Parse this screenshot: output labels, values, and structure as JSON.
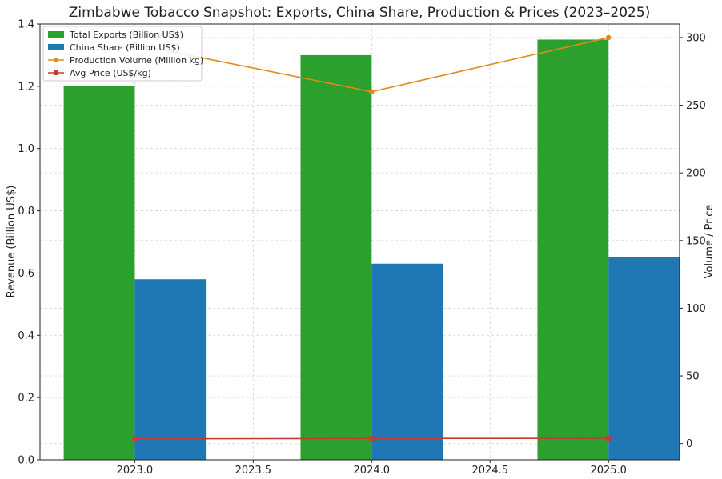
{
  "chart_data": {
    "type": "bar",
    "title": "Zimbabwe Tobacco Snapshot: Exports, China Share, Production & Prices (2023–2025)",
    "ylabel": "Revenue (Billion US$)",
    "y2label": "Volume / Price",
    "x": [
      2023,
      2024,
      2025
    ],
    "xlim": [
      2022.6,
      2025.3
    ],
    "ylim": [
      0,
      1.4
    ],
    "y2lim": [
      -12,
      310
    ],
    "xticks": [
      "2023.0",
      "2023.5",
      "2024.0",
      "2024.5",
      "2025.0"
    ],
    "yticks": [
      "0.0",
      "0.2",
      "0.4",
      "0.6",
      "0.8",
      "1.0",
      "1.2",
      "1.4"
    ],
    "y2ticks": [
      "0",
      "50",
      "100",
      "150",
      "200",
      "250",
      "300"
    ],
    "grid": true,
    "legend_position": "top-left",
    "series": [
      {
        "name": "Total Exports (Billion US$)",
        "kind": "bar",
        "axis": "left",
        "color": "#2ca02c",
        "values": [
          1.2,
          1.3,
          1.35
        ]
      },
      {
        "name": "China Share (Billion US$)",
        "kind": "bar",
        "axis": "left",
        "color": "#1f77b4",
        "values": [
          0.58,
          0.63,
          0.65
        ]
      },
      {
        "name": "Production Volume (Million kg)",
        "kind": "line",
        "axis": "right",
        "color": "#e08a1e",
        "values": [
          295,
          260,
          300
        ]
      },
      {
        "name": "Avg Price (US$/kg)",
        "kind": "line",
        "axis": "right",
        "color": "#c63a32",
        "values": [
          3.5,
          3.8,
          3.9
        ]
      }
    ]
  }
}
